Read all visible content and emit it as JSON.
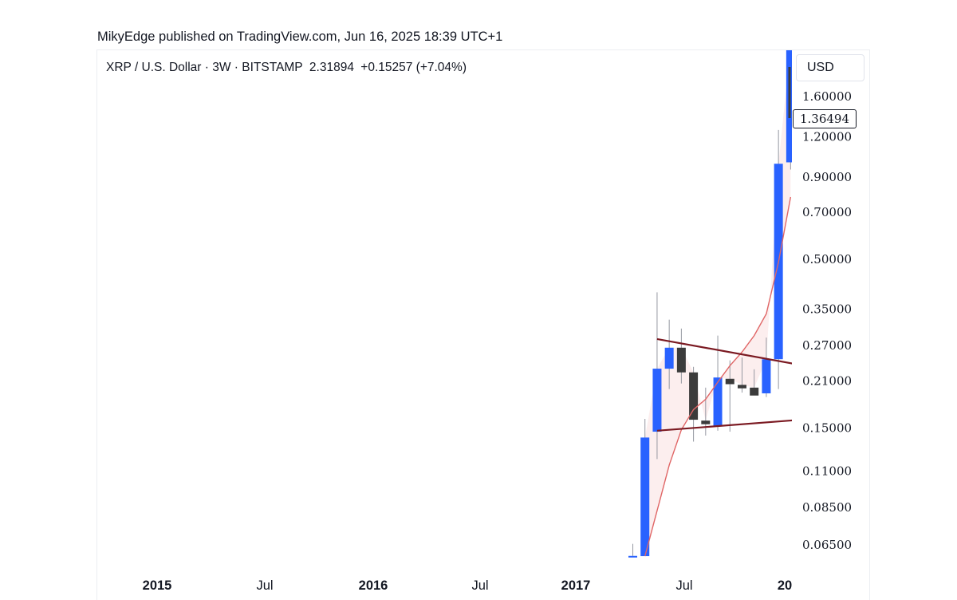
{
  "header": {
    "published": "MikyEdge published on TradingView.com, Jun 16, 2025 18:39 UTC+1"
  },
  "legend": {
    "symbol": "XRP / U.S. Dollar · 3W · BITSTAMP",
    "last": "2.31894",
    "change": "+0.15257 (+7.04%)"
  },
  "currency_button": "USD",
  "price_label": "1.36494",
  "colors": {
    "up": "#2962ff",
    "down": "#3b3b3b",
    "wick": "#9598a1",
    "ma": "#e06666",
    "ma_fill": "#fbeaea",
    "trendline": "#7b1a22"
  },
  "chart_data": {
    "type": "candlestick",
    "timeframe": "3W",
    "scale": "log",
    "yticks": [
      "1.60000",
      "1.20000",
      "0.90000",
      "0.70000",
      "0.50000",
      "0.35000",
      "0.27000",
      "0.21000",
      "0.15000",
      "0.11000",
      "0.08500",
      "0.06500"
    ],
    "xticks": [
      {
        "label": "2015",
        "major": true
      },
      {
        "label": "Jul",
        "major": false
      },
      {
        "label": "2016",
        "major": true
      },
      {
        "label": "Jul",
        "major": false
      },
      {
        "label": "2017",
        "major": true
      },
      {
        "label": "Jul",
        "major": false
      },
      {
        "label": "20",
        "major": true
      }
    ],
    "candles": [
      {
        "date": "2017-04-03",
        "open": 0.0601,
        "high": 0.0655,
        "low": 0.0601,
        "close": 0.0601
      },
      {
        "date": "2017-04-24",
        "open": 0.06,
        "high": 0.16,
        "low": 0.06,
        "close": 0.14
      },
      {
        "date": "2017-05-15",
        "open": 0.146,
        "high": 0.395,
        "low": 0.12,
        "close": 0.229
      },
      {
        "date": "2017-06-05",
        "open": 0.229,
        "high": 0.325,
        "low": 0.198,
        "close": 0.266
      },
      {
        "date": "2017-06-26",
        "open": 0.266,
        "high": 0.305,
        "low": 0.206,
        "close": 0.223
      },
      {
        "date": "2017-07-17",
        "open": 0.223,
        "high": 0.232,
        "low": 0.136,
        "close": 0.159
      },
      {
        "date": "2017-08-07",
        "open": 0.158,
        "high": 0.2,
        "low": 0.142,
        "close": 0.154
      },
      {
        "date": "2017-08-28",
        "open": 0.152,
        "high": 0.29,
        "low": 0.147,
        "close": 0.215
      },
      {
        "date": "2017-09-18",
        "open": 0.213,
        "high": 0.243,
        "low": 0.146,
        "close": 0.205
      },
      {
        "date": "2017-10-09",
        "open": 0.204,
        "high": 0.248,
        "low": 0.193,
        "close": 0.199
      },
      {
        "date": "2017-10-30",
        "open": 0.2,
        "high": 0.228,
        "low": 0.192,
        "close": 0.189
      },
      {
        "date": "2017-11-20",
        "open": 0.192,
        "high": 0.286,
        "low": 0.187,
        "close": 0.245
      },
      {
        "date": "2017-12-11",
        "open": 0.245,
        "high": 1.26,
        "low": 0.198,
        "close": 0.99
      },
      {
        "date": "2018-01-01",
        "open": 1.0,
        "high": 3.0,
        "low": 0.95,
        "close": 2.3
      }
    ],
    "moving_average": [
      {
        "date": "2017-04-24",
        "value": 0.06
      },
      {
        "date": "2017-05-15",
        "value": 0.083
      },
      {
        "date": "2017-06-05",
        "value": 0.115
      },
      {
        "date": "2017-06-26",
        "value": 0.148
      },
      {
        "date": "2017-07-17",
        "value": 0.171
      },
      {
        "date": "2017-08-07",
        "value": 0.184
      },
      {
        "date": "2017-08-28",
        "value": 0.208
      },
      {
        "date": "2017-09-18",
        "value": 0.234
      },
      {
        "date": "2017-10-09",
        "value": 0.258
      },
      {
        "date": "2017-10-30",
        "value": 0.29
      },
      {
        "date": "2017-11-20",
        "value": 0.339
      },
      {
        "date": "2017-12-11",
        "value": 0.49
      },
      {
        "date": "2018-01-01",
        "value": 0.78
      }
    ],
    "trendlines": [
      {
        "from": {
          "date": "2017-05-15",
          "value": 0.283
        },
        "to": {
          "date": "2018-01-19",
          "value": 0.235
        }
      },
      {
        "from": {
          "date": "2017-05-15",
          "value": 0.147
        },
        "to": {
          "date": "2018-01-19",
          "value": 0.159
        }
      }
    ]
  }
}
